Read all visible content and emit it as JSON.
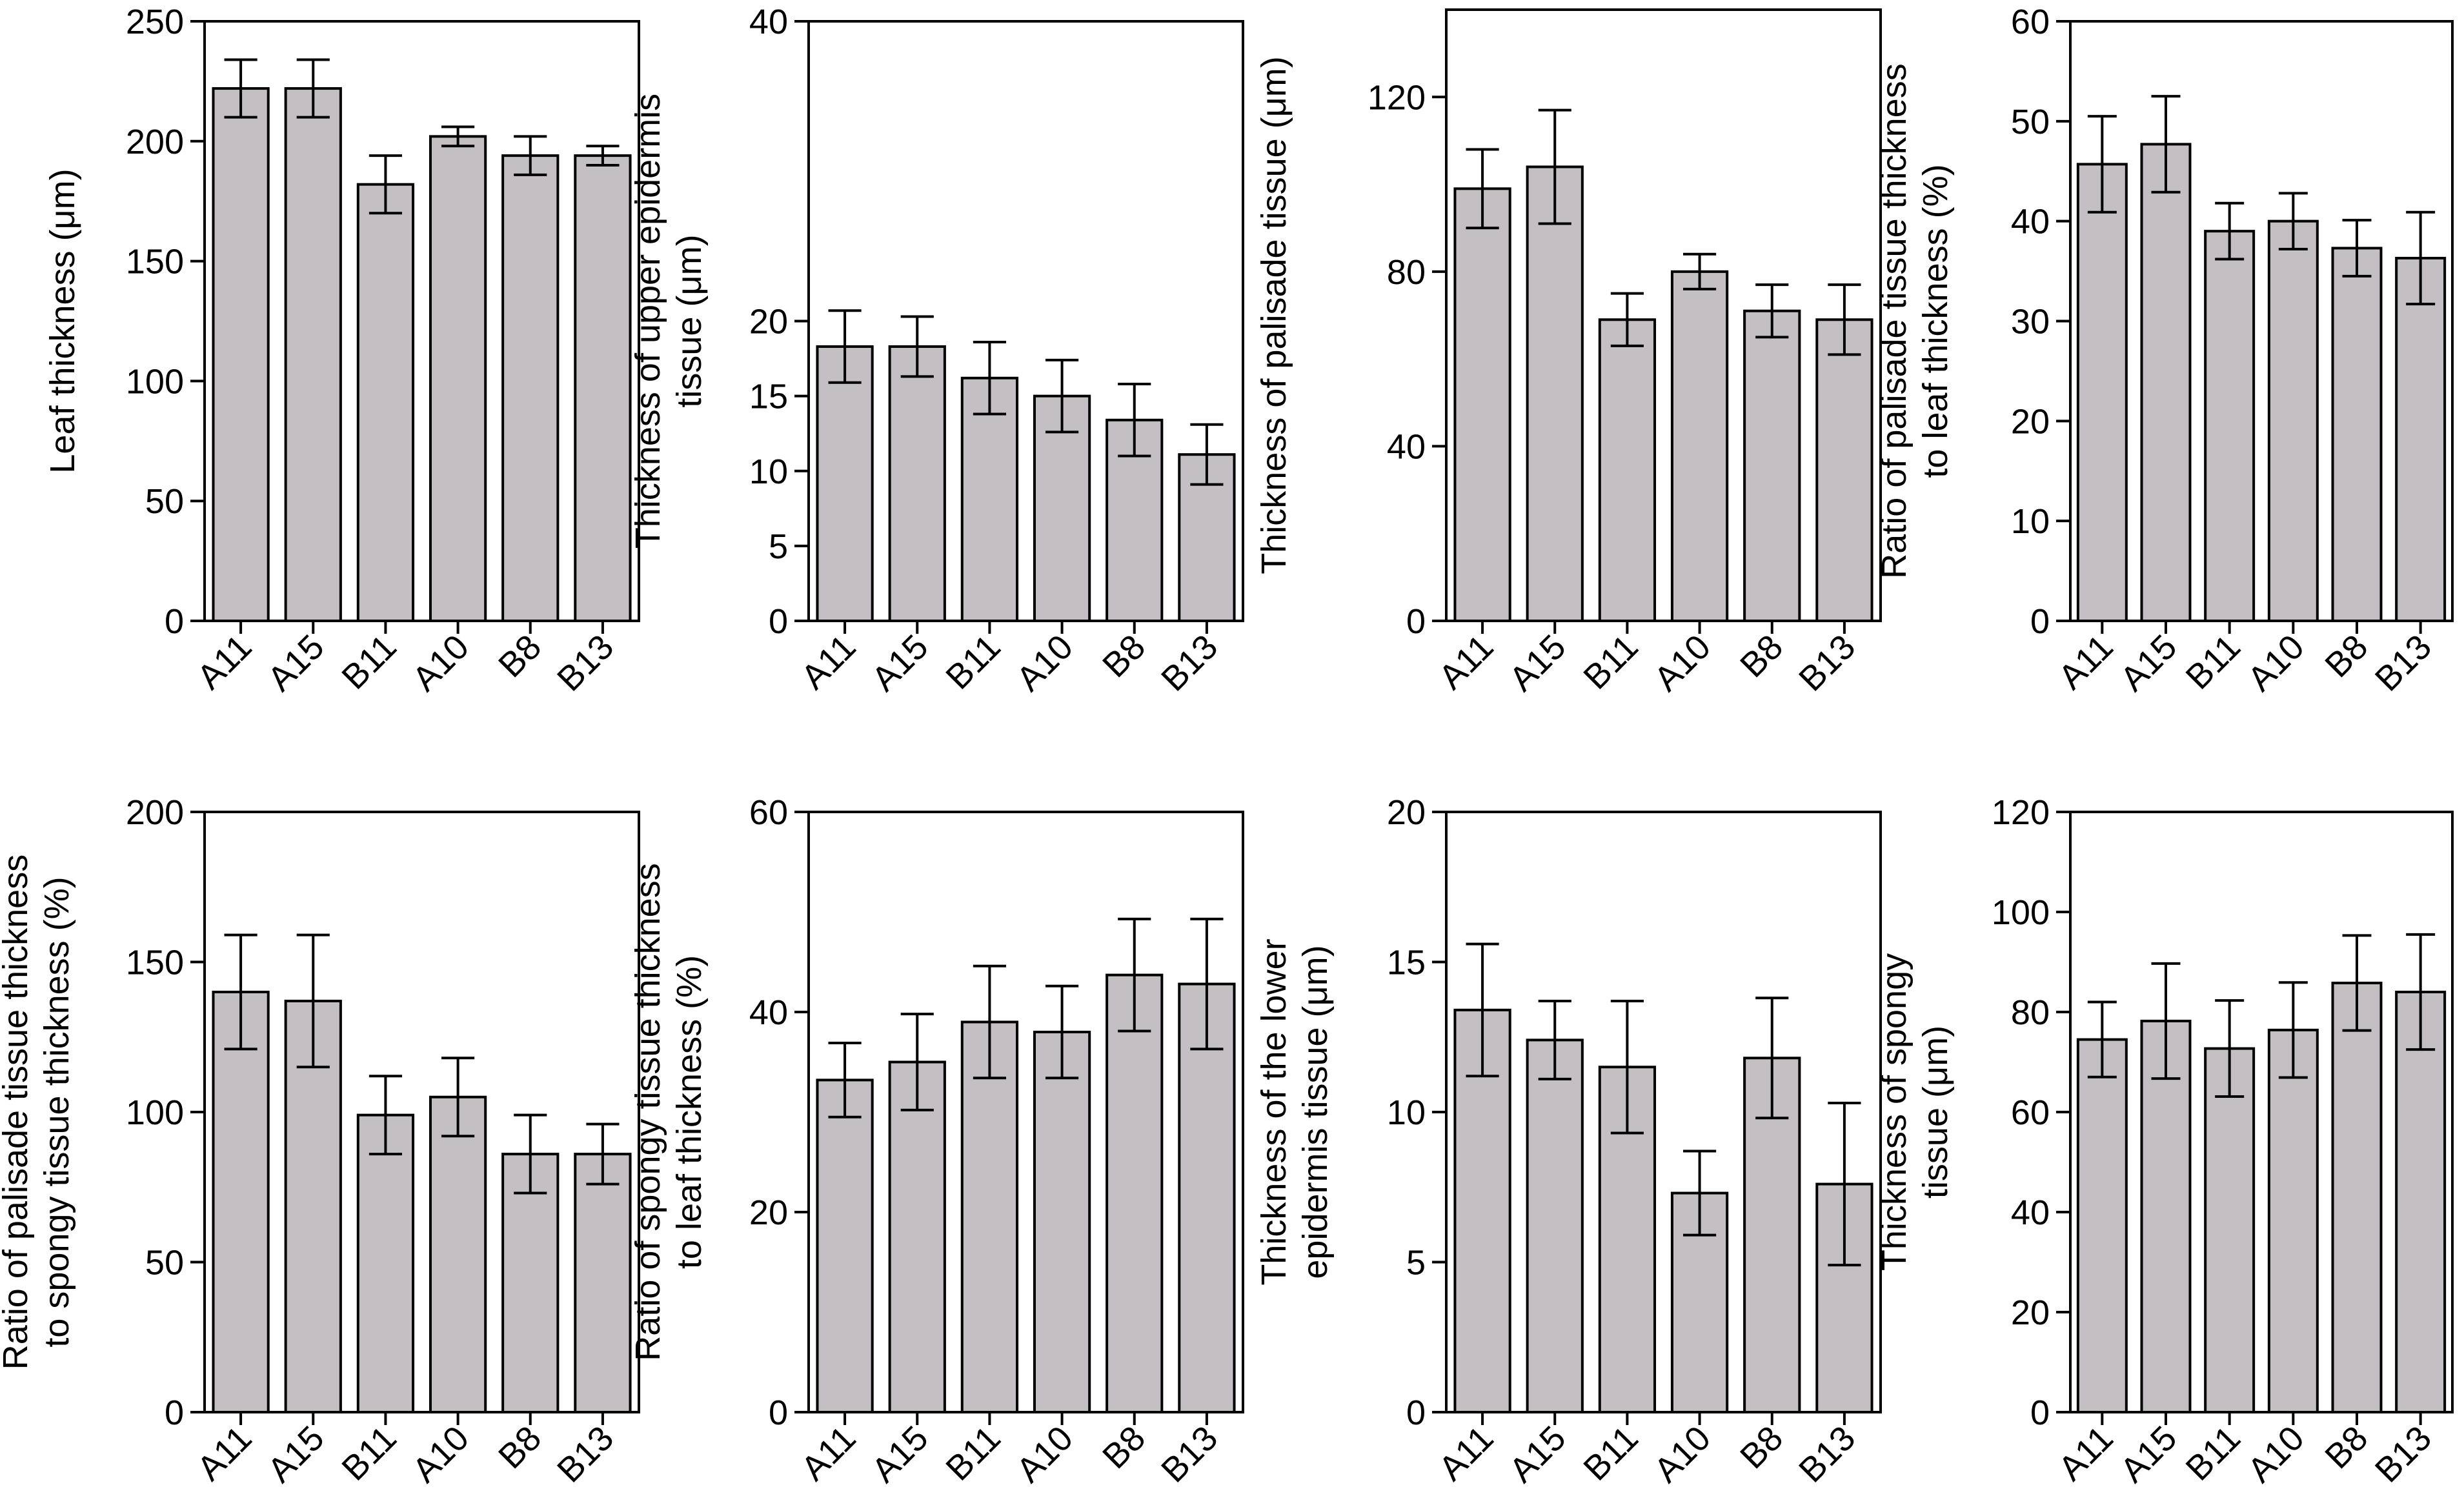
{
  "figure": {
    "colors": {
      "bar_fill": "#c4bfc2",
      "stroke": "#000000",
      "background": "#ffffff"
    }
  },
  "chart_data": [
    {
      "type": "bar",
      "title": "",
      "xlabel": "",
      "ylabel": [
        "Leaf thickness (μm)"
      ],
      "categories": [
        "A11",
        "A15",
        "B11",
        "A10",
        "B8",
        "B13"
      ],
      "values": [
        222,
        222,
        182,
        202,
        194,
        194
      ],
      "errors": [
        12,
        12,
        12,
        4,
        8,
        4
      ],
      "ylim": [
        0,
        250
      ],
      "yticks": [
        0,
        50,
        100,
        150,
        200,
        250
      ],
      "grid": false
    },
    {
      "type": "bar",
      "title": "",
      "xlabel": "",
      "ylabel": [
        "Thickness of upper epidermis",
        "tissue (μm)"
      ],
      "categories": [
        "A11",
        "A15",
        "B11",
        "A10",
        "B8",
        "B13"
      ],
      "values": [
        18.3,
        18.3,
        16.2,
        15.0,
        13.4,
        11.1
      ],
      "errors": [
        2.4,
        2.0,
        2.4,
        2.4,
        2.4,
        2.0
      ],
      "ylim": [
        0,
        40
      ],
      "yticks": [
        0,
        5,
        10,
        15,
        20,
        40
      ],
      "grid": false
    },
    {
      "type": "bar",
      "title": "",
      "xlabel": "",
      "ylabel": [
        "Thickness of palisade tissue (μm)"
      ],
      "categories": [
        "A11",
        "A15",
        "B11",
        "A10",
        "B8",
        "B13"
      ],
      "values": [
        99,
        104,
        69,
        80,
        71,
        69
      ],
      "errors": [
        9,
        13,
        6,
        4,
        6,
        8
      ],
      "ylim": [
        0,
        140
      ],
      "yticks": [
        0,
        40,
        80,
        120
      ],
      "grid": false
    },
    {
      "type": "bar",
      "title": "",
      "xlabel": "",
      "ylabel": [
        "Ratio of palisade tissue thickness",
        "to leaf thickness (%)"
      ],
      "categories": [
        "A11",
        "A15",
        "B11",
        "A10",
        "B8",
        "B13"
      ],
      "values": [
        45.7,
        47.7,
        39.0,
        40.0,
        37.3,
        36.3
      ],
      "errors": [
        4.8,
        4.8,
        2.8,
        2.8,
        2.8,
        4.6
      ],
      "ylim": [
        0,
        60
      ],
      "yticks": [
        0,
        10,
        20,
        30,
        40,
        50,
        60
      ],
      "grid": false
    },
    {
      "type": "bar",
      "title": "",
      "xlabel": "",
      "ylabel": [
        "Ratio of palisade tissue thickness",
        "to spongy tissue thickness (%)"
      ],
      "categories": [
        "A11",
        "A15",
        "B11",
        "A10",
        "B8",
        "B13"
      ],
      "values": [
        140,
        137,
        99,
        105,
        86,
        86
      ],
      "errors": [
        19,
        22,
        13,
        13,
        13,
        10
      ],
      "ylim": [
        0,
        200
      ],
      "yticks": [
        0,
        50,
        100,
        150,
        200
      ],
      "grid": false
    },
    {
      "type": "bar",
      "title": "",
      "xlabel": "",
      "ylabel": [
        "Ratio of spongy tissue thickness",
        "to leaf thickness (%)"
      ],
      "categories": [
        "A11",
        "A15",
        "B11",
        "A10",
        "B8",
        "B13"
      ],
      "values": [
        33.2,
        35.0,
        39.0,
        38.0,
        43.7,
        42.8
      ],
      "errors": [
        3.7,
        4.8,
        5.6,
        4.6,
        5.6,
        6.5
      ],
      "ylim": [
        0,
        60
      ],
      "yticks": [
        0,
        20,
        40,
        60
      ],
      "grid": false
    },
    {
      "type": "bar",
      "title": "",
      "xlabel": "",
      "ylabel": [
        "Thickness of the lower",
        "epidermis tissue (μm)"
      ],
      "categories": [
        "A11",
        "A15",
        "B11",
        "A10",
        "B8",
        "B13"
      ],
      "values": [
        13.4,
        12.4,
        11.5,
        7.3,
        11.8,
        7.6
      ],
      "errors": [
        2.2,
        1.3,
        2.2,
        1.4,
        2.0,
        2.7
      ],
      "ylim": [
        0,
        20
      ],
      "yticks": [
        0,
        5,
        10,
        15,
        20
      ],
      "grid": false
    },
    {
      "type": "bar",
      "title": "",
      "xlabel": "",
      "ylabel": [
        "Thickness of spongy",
        "tissue (μm)"
      ],
      "categories": [
        "A11",
        "A15",
        "B11",
        "A10",
        "B8",
        "B13"
      ],
      "values": [
        74.5,
        78.2,
        72.7,
        76.4,
        85.8,
        84.0
      ],
      "errors": [
        7.5,
        11.5,
        9.6,
        9.5,
        9.5,
        11.5
      ],
      "ylim": [
        0,
        120
      ],
      "yticks": [
        0,
        20,
        40,
        60,
        80,
        100,
        120
      ],
      "grid": false
    }
  ]
}
